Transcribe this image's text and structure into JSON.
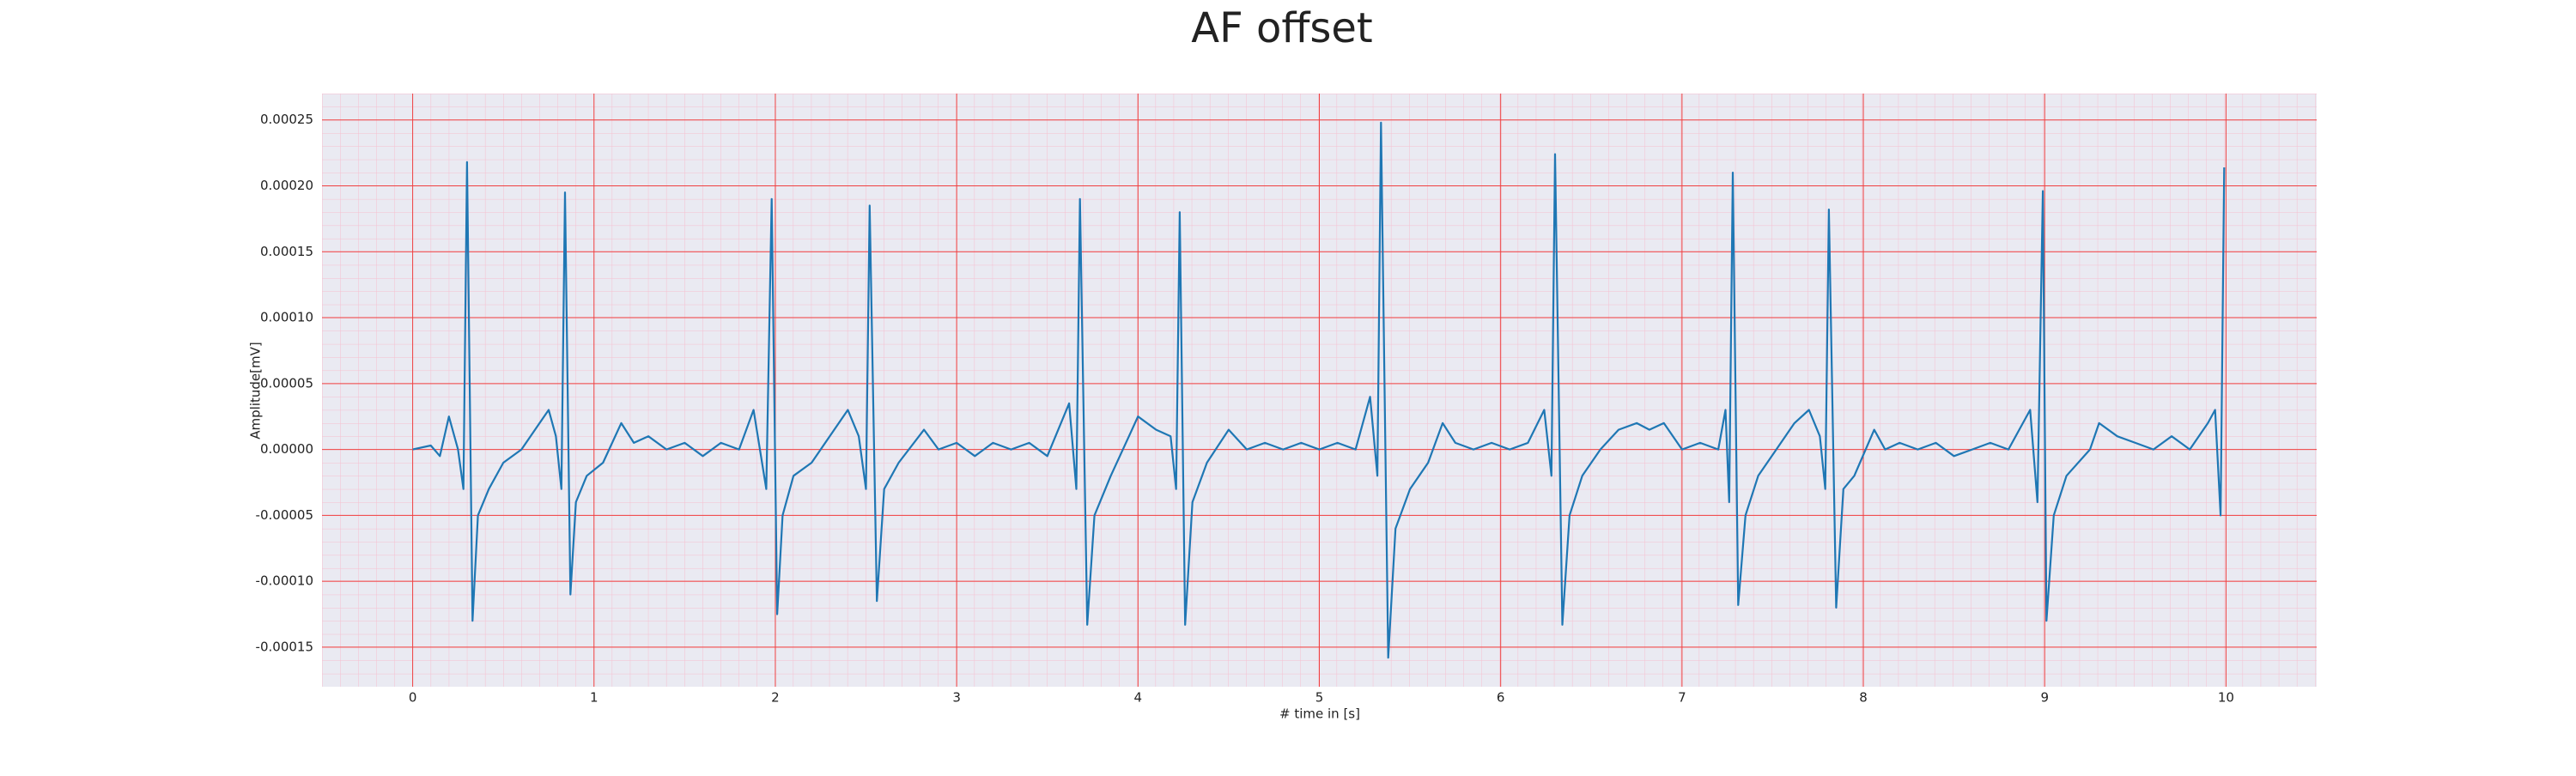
{
  "chart_data": {
    "type": "line",
    "title": "AF offset",
    "x_label": "# time in [s]",
    "y_label": "Amplitude[mV]",
    "color": "#1f77b4",
    "grid": true,
    "grid_color": "#f04040",
    "background": "#eaeaf2",
    "xlim": [
      -0.5,
      10.5
    ],
    "xticks": [
      0,
      1,
      2,
      3,
      4,
      5,
      6,
      7,
      8,
      9,
      10
    ],
    "ylim": [
      -0.00018,
      0.00027
    ],
    "yticks": [
      {
        "value": -0.00015,
        "label": "-0.00015"
      },
      {
        "value": -0.0001,
        "label": "-0.00010"
      },
      {
        "value": -5e-05,
        "label": "-0.00005"
      },
      {
        "value": 0,
        "label": "0.00000"
      },
      {
        "value": 5e-05,
        "label": "0.00005"
      },
      {
        "value": 0.0001,
        "label": "0.00010"
      },
      {
        "value": 0.00015,
        "label": "0.00015"
      },
      {
        "value": 0.0002,
        "label": "0.00020"
      },
      {
        "value": 0.00025,
        "label": "0.00025"
      }
    ],
    "x": [
      0,
      0.1,
      0.15,
      0.2,
      0.25,
      0.28,
      0.3,
      0.33,
      0.36,
      0.42,
      0.5,
      0.6,
      0.7,
      0.75,
      0.79,
      0.82,
      0.84,
      0.87,
      0.9,
      0.96,
      1.05,
      1.15,
      1.22,
      1.3,
      1.4,
      1.5,
      1.6,
      1.7,
      1.8,
      1.88,
      1.95,
      1.98,
      2.01,
      2.04,
      2.1,
      2.2,
      2.3,
      2.4,
      2.46,
      2.5,
      2.52,
      2.56,
      2.6,
      2.68,
      2.82,
      2.9,
      3.0,
      3.1,
      3.2,
      3.3,
      3.4,
      3.5,
      3.62,
      3.66,
      3.68,
      3.72,
      3.76,
      3.85,
      3.95,
      4.0,
      4.1,
      4.18,
      4.21,
      4.23,
      4.26,
      4.3,
      4.38,
      4.5,
      4.6,
      4.7,
      4.8,
      4.9,
      5.0,
      5.1,
      5.2,
      5.28,
      5.32,
      5.34,
      5.38,
      5.42,
      5.5,
      5.6,
      5.68,
      5.75,
      5.85,
      5.95,
      6.05,
      6.15,
      6.24,
      6.28,
      6.3,
      6.34,
      6.38,
      6.45,
      6.55,
      6.65,
      6.75,
      6.82,
      6.9,
      7.0,
      7.1,
      7.2,
      7.24,
      7.26,
      7.28,
      7.31,
      7.35,
      7.42,
      7.52,
      7.62,
      7.7,
      7.76,
      7.79,
      7.81,
      7.85,
      7.89,
      7.95,
      8.06,
      8.12,
      8.2,
      8.3,
      8.4,
      8.5,
      8.6,
      8.7,
      8.8,
      8.92,
      8.96,
      8.99,
      9.01,
      9.05,
      9.12,
      9.25,
      9.3,
      9.4,
      9.5,
      9.6,
      9.7,
      9.8,
      9.9,
      9.94,
      9.97,
      9.99
    ],
    "values": [
      0,
      3e-06,
      -5e-06,
      2.5e-05,
      0,
      -3e-05,
      0.000218,
      -0.00013,
      -5e-05,
      -3e-05,
      -1e-05,
      0,
      2e-05,
      3e-05,
      1e-05,
      -3e-05,
      0.000195,
      -0.00011,
      -4e-05,
      -2e-05,
      -1e-05,
      2e-05,
      5e-06,
      1e-05,
      0,
      5e-06,
      -5e-06,
      5e-06,
      0,
      3e-05,
      -3e-05,
      0.00019,
      -0.000125,
      -5e-05,
      -2e-05,
      -1e-05,
      1e-05,
      3e-05,
      1e-05,
      -3e-05,
      0.000185,
      -0.000115,
      -3e-05,
      -1e-05,
      1.5e-05,
      0,
      5e-06,
      -5e-06,
      5e-06,
      0,
      5e-06,
      -5e-06,
      3.5e-05,
      -3e-05,
      0.00019,
      -0.000133,
      -5e-05,
      -2e-05,
      1e-05,
      2.5e-05,
      1.5e-05,
      1e-05,
      -3e-05,
      0.00018,
      -0.000133,
      -4e-05,
      -1e-05,
      1.5e-05,
      0,
      5e-06,
      0,
      5e-06,
      0,
      5e-06,
      0,
      4e-05,
      -2e-05,
      0.000248,
      -0.000158,
      -6e-05,
      -3e-05,
      -1e-05,
      2e-05,
      5e-06,
      0,
      5e-06,
      0,
      5e-06,
      3e-05,
      -2e-05,
      0.000224,
      -0.000133,
      -5e-05,
      -2e-05,
      0,
      1.5e-05,
      2e-05,
      1.5e-05,
      2e-05,
      0,
      5e-06,
      0,
      3e-05,
      -4e-05,
      0.00021,
      -0.000118,
      -5e-05,
      -2e-05,
      0,
      2e-05,
      3e-05,
      1e-05,
      -3e-05,
      0.000182,
      -0.00012,
      -3e-05,
      -2e-05,
      1.5e-05,
      0,
      5e-06,
      0,
      5e-06,
      -5e-06,
      0,
      5e-06,
      0,
      3e-05,
      -4e-05,
      0.000196,
      -0.00013,
      -5e-05,
      -2e-05,
      0,
      2e-05,
      1e-05,
      5e-06,
      0,
      1e-05,
      0,
      2e-05,
      3e-05,
      -5e-05,
      0.000214
    ]
  }
}
